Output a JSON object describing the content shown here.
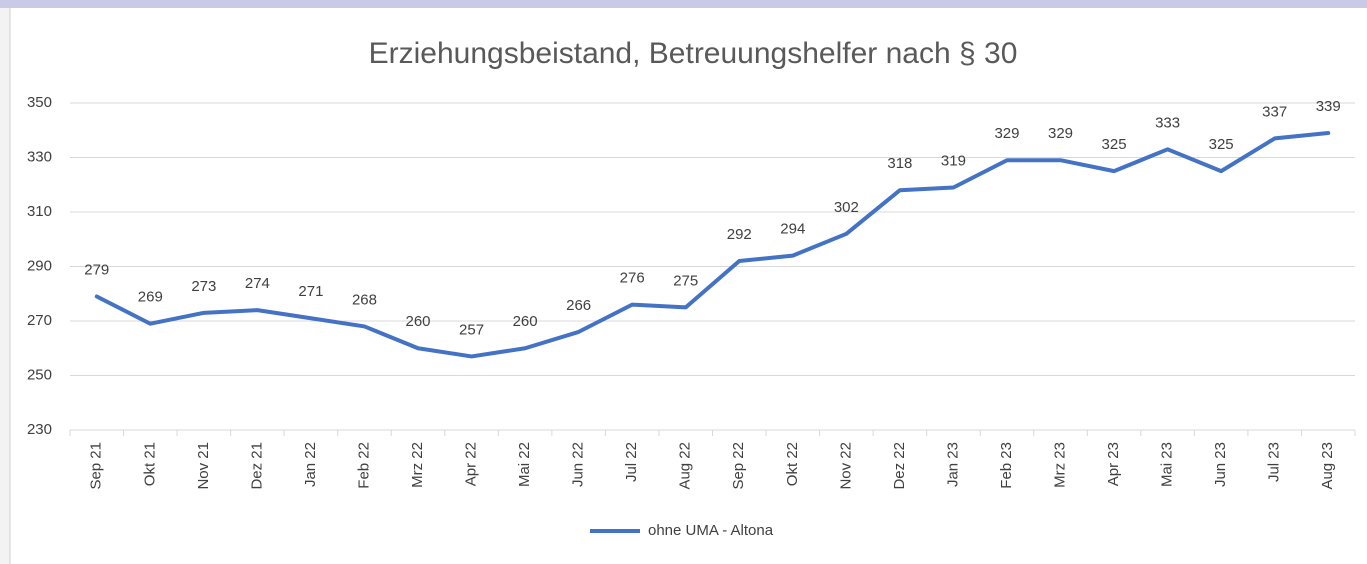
{
  "chart_data": {
    "type": "line",
    "title": "Erziehungsbeistand, Betreuungshelfer nach § 30",
    "categories": [
      "Sep 21",
      "Okt 21",
      "Nov 21",
      "Dez 21",
      "Jan 22",
      "Feb 22",
      "Mrz 22",
      "Apr 22",
      "Mai 22",
      "Jun 22",
      "Jul 22",
      "Aug 22",
      "Sep 22",
      "Okt 22",
      "Nov 22",
      "Dez 22",
      "Jan 23",
      "Feb 23",
      "Mrz 23",
      "Apr 23",
      "Mai 23",
      "Jun 23",
      "Jul 23",
      "Aug 23"
    ],
    "series": [
      {
        "name": "ohne UMA - Altona",
        "color": "#4472c4",
        "values": [
          279,
          269,
          273,
          274,
          271,
          268,
          260,
          257,
          260,
          266,
          276,
          275,
          292,
          294,
          302,
          318,
          319,
          329,
          329,
          325,
          333,
          325,
          337,
          339
        ]
      }
    ],
    "ylim": [
      230,
      350
    ],
    "yticks": [
      230,
      250,
      270,
      290,
      310,
      330,
      350
    ],
    "grid": true,
    "legend": "bottom"
  }
}
